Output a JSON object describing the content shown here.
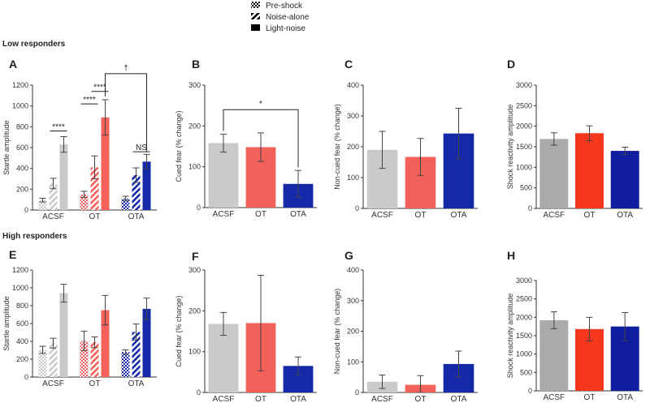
{
  "legend": {
    "items": [
      {
        "label": "Pre-shock",
        "pattern": "checker"
      },
      {
        "label": "Noise-alone",
        "pattern": "hatch"
      },
      {
        "label": "Light-noise",
        "pattern": "solid"
      }
    ]
  },
  "sections": {
    "low": "Low responders",
    "high": "High responders"
  },
  "colors": {
    "ACSF": "#c9cac9",
    "OT": "#f2615a",
    "OTA": "#1329a8",
    "ACSF_shock": "#a9aaab",
    "OT_shock": "#f5381d",
    "OTA_shock": "#0f1e9e",
    "axis": "#333333",
    "error": "#444444"
  },
  "chart_data": [
    {
      "id": "A",
      "type": "bar",
      "ylabel": "Startle amplitude",
      "ylim": [
        0,
        1200
      ],
      "ticks": [
        0,
        200,
        400,
        600,
        800,
        1000,
        1200
      ],
      "categories": [
        "ACSF",
        "OT",
        "OTA"
      ],
      "series": [
        {
          "name": "Pre-shock",
          "pattern": "checker",
          "values": [
            95,
            150,
            110
          ],
          "errors": [
            18,
            30,
            22
          ]
        },
        {
          "name": "Noise-alone",
          "pattern": "hatch",
          "values": [
            255,
            410,
            335
          ],
          "errors": [
            50,
            110,
            70
          ]
        },
        {
          "name": "Light-noise",
          "pattern": "solid",
          "values": [
            630,
            890,
            465
          ],
          "errors": [
            75,
            170,
            70
          ]
        }
      ],
      "annotations": [
        {
          "text": "****",
          "between": [
            "ACSF.Noise-alone",
            "ACSF.Light-noise"
          ],
          "y": 760
        },
        {
          "text": "****",
          "between": [
            "OT.Pre-shock",
            "OT.Noise-alone"
          ],
          "y": 1020
        },
        {
          "text": "****",
          "between": [
            "OT.Noise-alone",
            "OT.Light-noise"
          ],
          "y": 1140
        },
        {
          "text": "NS",
          "between": [
            "OTA.Noise-alone",
            "OTA.Light-noise"
          ],
          "y": 560
        },
        {
          "text": "†",
          "bracket": [
            "OT.Light-noise",
            "OTA.Light-noise"
          ],
          "y": 1310
        }
      ]
    },
    {
      "id": "B",
      "type": "bar",
      "ylabel": "Cued fear (% change)",
      "ylim": [
        0,
        300
      ],
      "ticks": [
        0,
        100,
        200,
        300
      ],
      "categories": [
        "ACSF",
        "OT",
        "OTA"
      ],
      "values": [
        158,
        148,
        58
      ],
      "errors": [
        22,
        35,
        33
      ],
      "annotations": [
        {
          "text": "*",
          "bracket": [
            "ACSF",
            "OTA"
          ],
          "y": 240
        }
      ]
    },
    {
      "id": "C",
      "type": "bar",
      "ylabel": "Non-cued fear (% change)",
      "ylim": [
        0,
        400
      ],
      "ticks": [
        0,
        100,
        200,
        300,
        400
      ],
      "categories": [
        "ACSF",
        "OT",
        "OTA"
      ],
      "values": [
        190,
        167,
        243
      ],
      "errors": [
        60,
        60,
        82
      ]
    },
    {
      "id": "D",
      "type": "bar",
      "ylabel": "Shock reactivity amplitude",
      "ylim": [
        0,
        3000
      ],
      "ticks": [
        0,
        500,
        1000,
        1500,
        2000,
        2500,
        3000
      ],
      "categories": [
        "ACSF",
        "OT",
        "OTA"
      ],
      "values": [
        1690,
        1830,
        1400
      ],
      "errors": [
        150,
        180,
        90
      ],
      "shock": true
    },
    {
      "id": "E",
      "type": "bar",
      "ylabel": "Startle amplitude",
      "ylim": [
        0,
        1200
      ],
      "ticks": [
        0,
        200,
        400,
        600,
        800,
        1000,
        1200
      ],
      "categories": [
        "ACSF",
        "OT",
        "OTA"
      ],
      "series": [
        {
          "name": "Pre-shock",
          "pattern": "checker",
          "values": [
            305,
            405,
            280
          ],
          "errors": [
            40,
            110,
            25
          ]
        },
        {
          "name": "Noise-alone",
          "pattern": "hatch",
          "values": [
            380,
            390,
            505
          ],
          "errors": [
            55,
            60,
            90
          ]
        },
        {
          "name": "Light-noise",
          "pattern": "solid",
          "values": [
            940,
            750,
            765
          ],
          "errors": [
            100,
            165,
            120
          ]
        }
      ]
    },
    {
      "id": "F",
      "type": "bar",
      "ylabel": "Cued fear (% change)",
      "ylim": [
        0,
        300
      ],
      "ticks": [
        0,
        100,
        200,
        300
      ],
      "categories": [
        "ACSF",
        "OT",
        "OTA"
      ],
      "values": [
        168,
        170,
        65
      ],
      "errors": [
        28,
        117,
        22
      ]
    },
    {
      "id": "G",
      "type": "bar",
      "ylabel": "Non-cued fear (% change)",
      "ylim": [
        0,
        400
      ],
      "ticks": [
        0,
        100,
        200,
        300,
        400
      ],
      "categories": [
        "ACSF",
        "OT",
        "OTA"
      ],
      "values": [
        35,
        25,
        93
      ],
      "errors": [
        22,
        30,
        42
      ]
    },
    {
      "id": "H",
      "type": "bar",
      "ylabel": "Shock reactivity amplitude",
      "ylim": [
        0,
        3000
      ],
      "ticks": [
        0,
        500,
        1000,
        1500,
        2000,
        2500,
        3000
      ],
      "categories": [
        "ACSF",
        "OT",
        "OTA"
      ],
      "values": [
        1920,
        1680,
        1750
      ],
      "errors": [
        230,
        320,
        380
      ],
      "shock": true
    }
  ]
}
